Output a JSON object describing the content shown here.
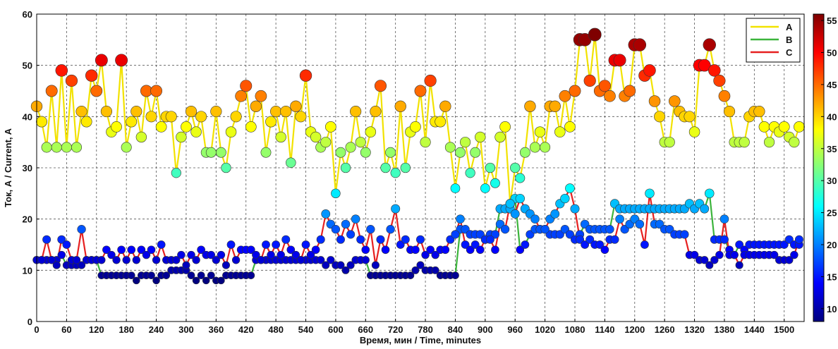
{
  "chart_data": {
    "type": "line",
    "title": "",
    "xlabel": "Время, мин / Time, minutes",
    "ylabel": "Ток, А / Current, A",
    "xlim": [
      0,
      1540
    ],
    "ylim": [
      0,
      60
    ],
    "xticks": [
      0,
      60,
      120,
      180,
      240,
      300,
      360,
      420,
      480,
      540,
      600,
      660,
      720,
      780,
      840,
      900,
      960,
      1020,
      1080,
      1140,
      1200,
      1260,
      1320,
      1380,
      1440,
      1500
    ],
    "yticks": [
      0,
      10,
      20,
      30,
      40,
      50,
      60
    ],
    "grid": true,
    "legend_position": "top-right",
    "markers_colored_by_value": true,
    "colorbar": {
      "range": [
        8,
        56
      ],
      "ticks": [
        10,
        15,
        20,
        25,
        30,
        35,
        40,
        45,
        50,
        55
      ],
      "colormap": "jet"
    },
    "series": [
      {
        "name": "A",
        "color": "#f2e200",
        "x": [
          0,
          10,
          20,
          30,
          40,
          50,
          60,
          70,
          80,
          90,
          100,
          110,
          120,
          130,
          140,
          150,
          160,
          170,
          180,
          190,
          200,
          210,
          220,
          230,
          240,
          250,
          260,
          270,
          280,
          290,
          300,
          310,
          320,
          330,
          340,
          350,
          360,
          370,
          380,
          390,
          400,
          410,
          420,
          430,
          440,
          450,
          460,
          470,
          480,
          490,
          500,
          510,
          520,
          530,
          540,
          550,
          560,
          570,
          580,
          590,
          600,
          610,
          620,
          630,
          640,
          650,
          660,
          670,
          680,
          690,
          700,
          710,
          720,
          730,
          740,
          750,
          760,
          770,
          780,
          790,
          800,
          810,
          820,
          830,
          840,
          850,
          860,
          870,
          880,
          890,
          900,
          910,
          920,
          930,
          940,
          950,
          960,
          970,
          980,
          990,
          1000,
          1010,
          1020,
          1030,
          1040,
          1050,
          1060,
          1070,
          1080,
          1090,
          1100,
          1110,
          1120,
          1130,
          1140,
          1150,
          1160,
          1170,
          1180,
          1190,
          1200,
          1210,
          1220,
          1230,
          1240,
          1250,
          1260,
          1270,
          1280,
          1290,
          1300,
          1310,
          1320,
          1330,
          1340,
          1350,
          1360,
          1370,
          1380,
          1390,
          1400,
          1410,
          1420,
          1430,
          1440,
          1450,
          1460,
          1470,
          1480,
          1490,
          1500,
          1510,
          1520,
          1530
        ],
        "values": [
          42,
          39,
          34,
          45,
          34,
          49,
          34,
          47,
          34,
          41,
          39,
          48,
          45,
          51,
          41,
          37,
          38,
          51,
          34,
          39,
          41,
          36,
          45,
          40,
          45,
          38,
          40,
          40,
          29,
          36,
          38,
          41,
          37,
          40,
          33,
          33,
          41,
          33,
          30,
          37,
          40,
          44,
          46,
          38,
          42,
          44,
          33,
          39,
          41,
          36,
          41,
          31,
          42,
          40,
          48,
          37,
          36,
          34,
          35,
          38,
          25,
          33,
          30,
          34,
          41,
          35,
          33,
          37,
          41,
          46,
          30,
          33,
          29,
          42,
          30,
          37,
          38,
          45,
          35,
          47,
          39,
          39,
          42,
          34,
          26,
          33,
          35,
          29,
          33,
          36,
          26,
          30,
          27,
          36,
          38,
          23,
          30,
          28,
          33,
          42,
          34,
          37,
          34,
          42,
          42,
          37,
          44,
          38,
          45,
          55,
          55,
          47,
          56,
          45,
          46,
          44,
          51,
          51,
          44,
          45,
          54,
          54,
          48,
          49,
          43,
          40,
          35,
          35,
          43,
          41,
          40,
          40,
          37,
          50,
          50,
          54,
          49,
          47,
          44,
          41,
          35,
          35,
          35,
          40,
          41,
          41,
          38,
          35,
          38,
          37,
          38,
          36,
          35,
          38
        ]
      },
      {
        "name": "B",
        "color": "#3cb43c",
        "x": [
          0,
          10,
          20,
          30,
          40,
          50,
          60,
          70,
          80,
          90,
          100,
          110,
          120,
          130,
          140,
          150,
          160,
          170,
          180,
          190,
          200,
          210,
          220,
          230,
          240,
          250,
          260,
          270,
          280,
          290,
          300,
          310,
          320,
          330,
          340,
          350,
          360,
          370,
          380,
          390,
          400,
          410,
          420,
          430,
          440,
          450,
          460,
          470,
          480,
          490,
          500,
          510,
          520,
          530,
          540,
          550,
          560,
          570,
          580,
          590,
          600,
          610,
          620,
          630,
          640,
          650,
          660,
          670,
          680,
          690,
          700,
          710,
          720,
          730,
          740,
          750,
          760,
          770,
          780,
          790,
          800,
          810,
          820,
          830,
          840,
          850,
          860,
          870,
          880,
          890,
          900,
          910,
          920,
          930,
          940,
          950,
          960,
          970,
          980,
          990,
          1000,
          1010,
          1020,
          1030,
          1040,
          1050,
          1060,
          1070,
          1080,
          1090,
          1100,
          1110,
          1120,
          1130,
          1140,
          1150,
          1160,
          1170,
          1180,
          1190,
          1200,
          1210,
          1220,
          1230,
          1240,
          1250,
          1260,
          1270,
          1280,
          1290,
          1300,
          1310,
          1320,
          1330,
          1340,
          1350,
          1360,
          1370,
          1380,
          1390,
          1400,
          1410,
          1420,
          1430,
          1440,
          1450,
          1460,
          1470,
          1480,
          1490,
          1500,
          1510,
          1520,
          1530
        ],
        "values": [
          12,
          12,
          12,
          12,
          12,
          13,
          11,
          11,
          11,
          11,
          12,
          12,
          12,
          9,
          9,
          9,
          9,
          9,
          9,
          9,
          8,
          9,
          9,
          9,
          8,
          9,
          9,
          10,
          10,
          10,
          10,
          9,
          8,
          9,
          8,
          9,
          8,
          8,
          9,
          9,
          9,
          9,
          9,
          9,
          12,
          12,
          12,
          12,
          12,
          12,
          12,
          12,
          12,
          12,
          12,
          12,
          12,
          12,
          11,
          12,
          11,
          11,
          10,
          11,
          12,
          12,
          12,
          9,
          9,
          9,
          9,
          9,
          9,
          9,
          9,
          9,
          10,
          11,
          10,
          10,
          10,
          9,
          9,
          9,
          9,
          18,
          18,
          17,
          17,
          17,
          16,
          17,
          17,
          22,
          22,
          22,
          24,
          14,
          15,
          17,
          18,
          18,
          18,
          17,
          17,
          17,
          18,
          17,
          16,
          17,
          19,
          18,
          18,
          18,
          18,
          18,
          23,
          22,
          22,
          22,
          22,
          22,
          22,
          22,
          22,
          22,
          22,
          22,
          22,
          22,
          22,
          23,
          22,
          23,
          22,
          25,
          16,
          16,
          16,
          14,
          13,
          15,
          14,
          15,
          15,
          15,
          15,
          15,
          15,
          15,
          15,
          16,
          15,
          15
        ]
      },
      {
        "name": "C",
        "color": "#e62020",
        "x": [
          0,
          10,
          20,
          30,
          40,
          50,
          60,
          70,
          80,
          90,
          100,
          110,
          120,
          130,
          140,
          150,
          160,
          170,
          180,
          190,
          200,
          210,
          220,
          230,
          240,
          250,
          260,
          270,
          280,
          290,
          300,
          310,
          320,
          330,
          340,
          350,
          360,
          370,
          380,
          390,
          400,
          410,
          420,
          430,
          440,
          450,
          460,
          470,
          480,
          490,
          500,
          510,
          520,
          530,
          540,
          550,
          560,
          570,
          580,
          590,
          600,
          610,
          620,
          630,
          640,
          650,
          660,
          670,
          680,
          690,
          700,
          710,
          720,
          730,
          740,
          750,
          760,
          770,
          780,
          790,
          800,
          810,
          820,
          830,
          840,
          850,
          860,
          870,
          880,
          890,
          900,
          910,
          920,
          930,
          940,
          950,
          960,
          970,
          980,
          990,
          1000,
          1010,
          1020,
          1030,
          1040,
          1050,
          1060,
          1070,
          1080,
          1090,
          1100,
          1110,
          1120,
          1130,
          1140,
          1150,
          1160,
          1170,
          1180,
          1190,
          1200,
          1210,
          1220,
          1230,
          1240,
          1250,
          1260,
          1270,
          1280,
          1290,
          1300,
          1310,
          1320,
          1330,
          1340,
          1350,
          1360,
          1370,
          1380,
          1390,
          1400,
          1410,
          1420,
          1430,
          1440,
          1450,
          1460,
          1470,
          1480,
          1490,
          1500,
          1510,
          1520,
          1530
        ],
        "values": [
          12,
          12,
          16,
          12,
          11,
          16,
          15,
          12,
          12,
          18,
          12,
          12,
          12,
          12,
          14,
          13,
          12,
          14,
          12,
          14,
          12,
          14,
          13,
          14,
          12,
          15,
          12,
          12,
          12,
          13,
          11,
          13,
          12,
          14,
          13,
          13,
          12,
          13,
          11,
          15,
          12,
          14,
          14,
          14,
          13,
          12,
          15,
          13,
          15,
          13,
          16,
          14,
          13,
          12,
          15,
          13,
          14,
          16,
          21,
          19,
          18,
          16,
          19,
          17,
          20,
          16,
          14,
          18,
          11,
          16,
          14,
          18,
          22,
          15,
          16,
          14,
          14,
          16,
          13,
          14,
          13,
          14,
          14,
          16,
          17,
          20,
          15,
          14,
          15,
          14,
          16,
          16,
          14,
          19,
          18,
          23,
          21,
          24,
          22,
          21,
          20,
          18,
          18,
          20,
          21,
          23,
          24,
          26,
          22,
          16,
          15,
          16,
          15,
          15,
          14,
          16,
          16,
          20,
          18,
          19,
          20,
          19,
          15,
          25,
          19,
          19,
          18,
          18,
          17,
          17,
          17,
          13,
          13,
          12,
          12,
          11,
          12,
          13,
          20,
          13,
          13,
          11,
          13,
          13,
          13,
          13,
          13,
          13,
          13,
          12,
          12,
          12,
          13,
          16
        ]
      }
    ]
  }
}
